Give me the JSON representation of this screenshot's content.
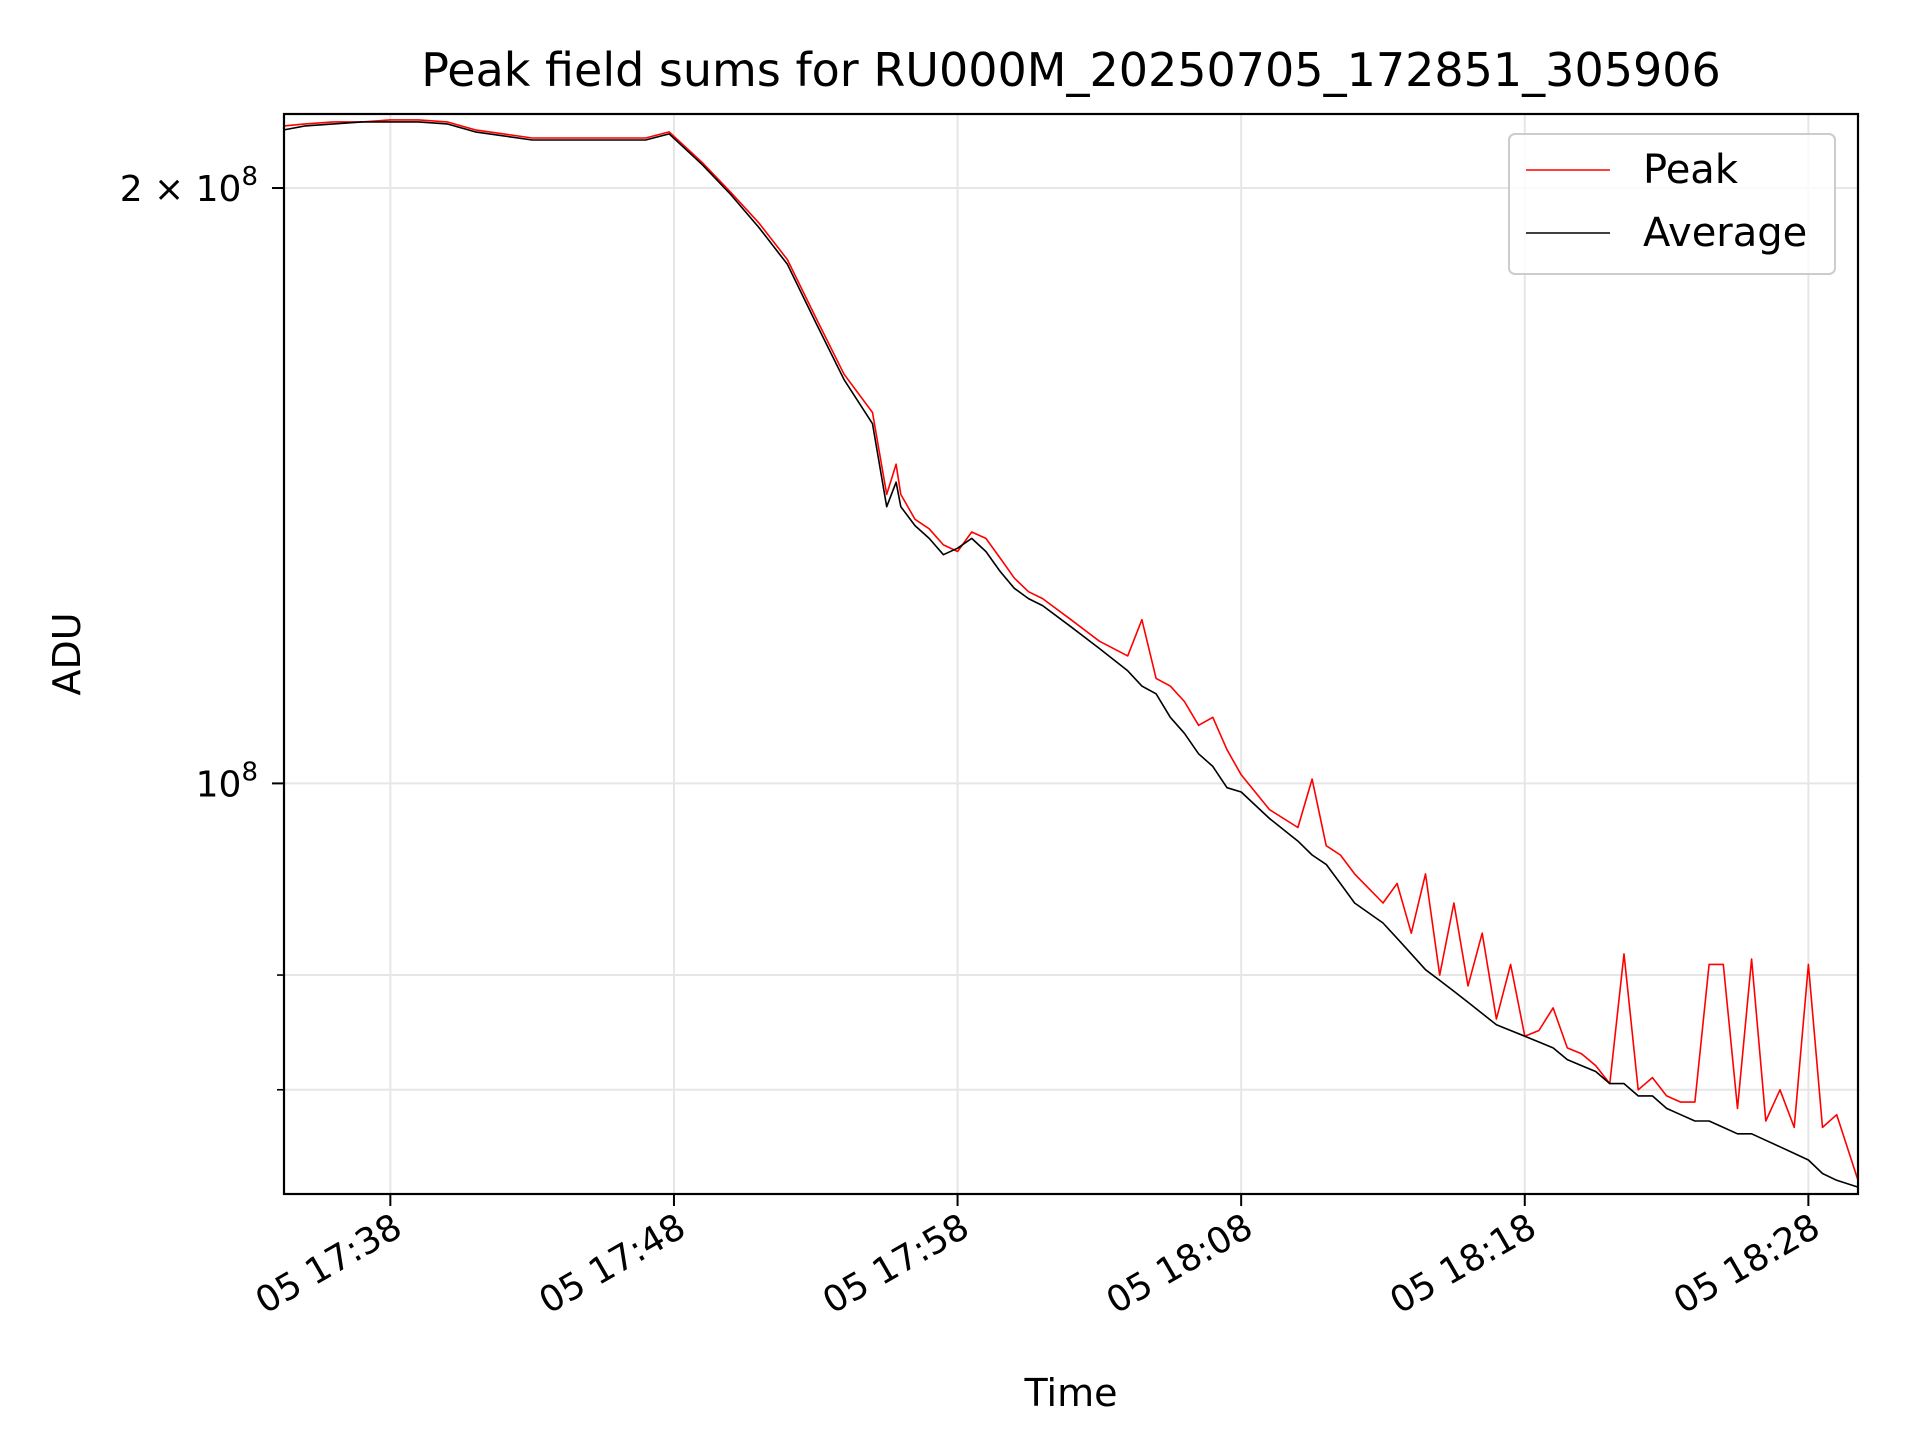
{
  "chart_data": {
    "type": "line",
    "title": "Peak field sums for RU000M_20250705_172851_305906",
    "xlabel": "Time",
    "ylabel": "ADU",
    "x_unit": "time of day (HH:MM), 2025-07-05",
    "xlim": [
      "17:34:15",
      "18:29:45"
    ],
    "ylim": [
      62000000,
      218000000
    ],
    "yscale": "log",
    "x_ticks": [
      {
        "value": "17:38",
        "label": "05 17:38"
      },
      {
        "value": "17:48",
        "label": "05 17:48"
      },
      {
        "value": "17:58",
        "label": "05 17:58"
      },
      {
        "value": "18:08",
        "label": "05 18:08"
      },
      {
        "value": "18:18",
        "label": "05 18:18"
      },
      {
        "value": "18:28",
        "label": "05 18:28"
      }
    ],
    "y_major_ticks": [
      {
        "value": 100000000,
        "label_mantissa": "",
        "label_base": "10",
        "label_exp": "8"
      },
      {
        "value": 200000000,
        "label_mantissa": "2 × ",
        "label_base": "10",
        "label_exp": "8"
      }
    ],
    "y_minor_ticks": [
      80000000,
      70000000
    ],
    "grid": true,
    "legend_position": "top-right",
    "series": [
      {
        "name": "Peak",
        "color": "#ff0000",
        "x": [
          "17:34:15",
          "17:35",
          "17:36",
          "17:37",
          "17:38",
          "17:39",
          "17:40",
          "17:41",
          "17:42",
          "17:43",
          "17:44",
          "17:45",
          "17:46",
          "17:47",
          "17:47:50",
          "17:49",
          "17:50",
          "17:51",
          "17:52",
          "17:53",
          "17:54",
          "17:55",
          "17:55:30",
          "17:55:50",
          "17:56",
          "17:56:30",
          "17:57",
          "17:57:30",
          "17:58",
          "17:58:30",
          "17:59",
          "17:59:30",
          "18:00",
          "18:00:30",
          "18:01",
          "18:02",
          "18:03",
          "18:04",
          "18:04:30",
          "18:05",
          "18:05:30",
          "18:06",
          "18:06:30",
          "18:07",
          "18:07:30",
          "18:08",
          "18:09",
          "18:10",
          "18:10:30",
          "18:11",
          "18:11:30",
          "18:12",
          "18:13",
          "18:13:30",
          "18:14",
          "18:14:30",
          "18:15",
          "18:15:30",
          "18:16",
          "18:16:30",
          "18:17",
          "18:17:30",
          "18:18",
          "18:18:30",
          "18:19",
          "18:19:30",
          "18:20",
          "18:20:30",
          "18:21",
          "18:21:30",
          "18:22",
          "18:22:30",
          "18:23",
          "18:23:30",
          "18:24",
          "18:24:30",
          "18:25",
          "18:25:30",
          "18:26",
          "18:26:30",
          "18:27",
          "18:27:30",
          "18:28",
          "18:28:30",
          "18:29",
          "18:29:45"
        ],
        "values": [
          215000000,
          215500000,
          216000000,
          216000000,
          216500000,
          216500000,
          216000000,
          214000000,
          213000000,
          212000000,
          212000000,
          212000000,
          212000000,
          212000000,
          213500000,
          206000000,
          199000000,
          192000000,
          184000000,
          172000000,
          161000000,
          154000000,
          140000000,
          145000000,
          140000000,
          136000000,
          134500000,
          132000000,
          131000000,
          134000000,
          133000000,
          130000000,
          127000000,
          125000000,
          124000000,
          121000000,
          118000000,
          116000000,
          121000000,
          113000000,
          112000000,
          110000000,
          107000000,
          108000000,
          104000000,
          101000000,
          97000000,
          95000000,
          100500000,
          93000000,
          92000000,
          90000000,
          87000000,
          89000000,
          84000000,
          90000000,
          80000000,
          87000000,
          79000000,
          84000000,
          76000000,
          81000000,
          74500000,
          75000000,
          77000000,
          73500000,
          73000000,
          72000000,
          70500000,
          82000000,
          70000000,
          71000000,
          69500000,
          69000000,
          69000000,
          81000000,
          81000000,
          68500000,
          81500000,
          67500000,
          70000000,
          67000000,
          81000000,
          67000000,
          68000000,
          63000000
        ]
      },
      {
        "name": "Average",
        "color": "#000000",
        "x": [
          "17:34:15",
          "17:35",
          "17:36",
          "17:37",
          "17:38",
          "17:39",
          "17:40",
          "17:41",
          "17:42",
          "17:43",
          "17:44",
          "17:45",
          "17:46",
          "17:47",
          "17:47:50",
          "17:49",
          "17:50",
          "17:51",
          "17:52",
          "17:53",
          "17:54",
          "17:55",
          "17:55:30",
          "17:55:50",
          "17:56",
          "17:56:30",
          "17:57",
          "17:57:30",
          "17:58",
          "17:58:30",
          "17:59",
          "17:59:30",
          "18:00",
          "18:00:30",
          "18:01",
          "18:02",
          "18:03",
          "18:04",
          "18:04:30",
          "18:05",
          "18:05:30",
          "18:06",
          "18:06:30",
          "18:07",
          "18:07:30",
          "18:08",
          "18:09",
          "18:10",
          "18:10:30",
          "18:11",
          "18:11:30",
          "18:12",
          "18:13",
          "18:13:30",
          "18:14",
          "18:14:30",
          "18:15",
          "18:15:30",
          "18:16",
          "18:16:30",
          "18:17",
          "18:17:30",
          "18:18",
          "18:18:30",
          "18:19",
          "18:19:30",
          "18:20",
          "18:20:30",
          "18:21",
          "18:21:30",
          "18:22",
          "18:22:30",
          "18:23",
          "18:23:30",
          "18:24",
          "18:24:30",
          "18:25",
          "18:25:30",
          "18:26",
          "18:26:30",
          "18:27",
          "18:27:30",
          "18:28",
          "18:28:30",
          "18:29",
          "18:29:45"
        ],
        "values": [
          214000000,
          215000000,
          215500000,
          216000000,
          216000000,
          216000000,
          215500000,
          213500000,
          212500000,
          211500000,
          211500000,
          211500000,
          211500000,
          211500000,
          213000000,
          205500000,
          198500000,
          191000000,
          183000000,
          171000000,
          160000000,
          152000000,
          138000000,
          142000000,
          138000000,
          135000000,
          133000000,
          130500000,
          131500000,
          133000000,
          131000000,
          128000000,
          125500000,
          124000000,
          123000000,
          120000000,
          117000000,
          114000000,
          112000000,
          111000000,
          108000000,
          106000000,
          103500000,
          102000000,
          99500000,
          99000000,
          96000000,
          93500000,
          92000000,
          91000000,
          89000000,
          87000000,
          85000000,
          83500000,
          82000000,
          80500000,
          79500000,
          78500000,
          77500000,
          76500000,
          75500000,
          75000000,
          74500000,
          74000000,
          73500000,
          72500000,
          72000000,
          71500000,
          70500000,
          70500000,
          69500000,
          69500000,
          68500000,
          68000000,
          67500000,
          67500000,
          67000000,
          66500000,
          66500000,
          66000000,
          65500000,
          65000000,
          64500000,
          63500000,
          63000000,
          62500000
        ]
      }
    ]
  }
}
